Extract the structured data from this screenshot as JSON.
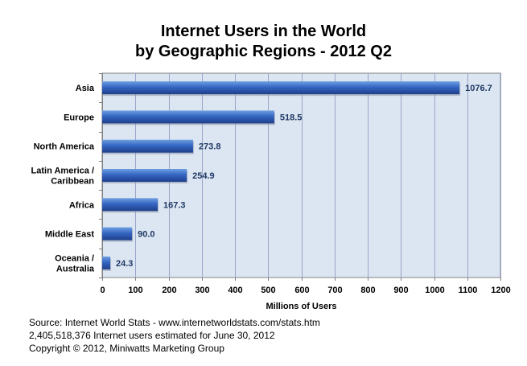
{
  "chart_data": {
    "type": "bar",
    "orientation": "horizontal",
    "title": "Internet Users in the World",
    "subtitle": "by Geographic Regions - 2012 Q2",
    "categories": [
      "Asia",
      "Europe",
      "North America",
      "Latin America / Caribbean",
      "Africa",
      "Middle East",
      "Oceania  / Australia"
    ],
    "category_lines": [
      [
        "Asia"
      ],
      [
        "Europe"
      ],
      [
        "North America"
      ],
      [
        "Latin America /",
        "Caribbean"
      ],
      [
        "Africa"
      ],
      [
        "Middle East"
      ],
      [
        "Oceania  /",
        "Australia"
      ]
    ],
    "values": [
      1076.7,
      518.5,
      273.8,
      254.9,
      167.3,
      90.0,
      24.3
    ],
    "value_labels": [
      "1076.7",
      "518.5",
      "273.8",
      "254.9",
      "167.3",
      "90.0",
      "24.3"
    ],
    "xlabel": "Millions of Users",
    "ylabel": "",
    "xlim": [
      0,
      1200
    ],
    "xticks": [
      0,
      100,
      200,
      300,
      400,
      500,
      600,
      700,
      800,
      900,
      1000,
      1100,
      1200
    ],
    "grid": true,
    "legend": "none",
    "colors": {
      "plot_bg": "#dce6f2",
      "grid": "#9aa4c8",
      "bar_light": "#6f9fe0",
      "bar_mid": "#3566c2",
      "bar_dark": "#1e3f8a",
      "label_text": "#1f3864",
      "axis": "#808080"
    }
  },
  "footer": {
    "source": "Source: Internet World Stats - www.internetworldstats.com/stats.htm",
    "estimate": "2,405,518,376 Internet users estimated for June 30, 2012",
    "copyright": "Copyright © 2012, Miniwatts Marketing Group"
  }
}
